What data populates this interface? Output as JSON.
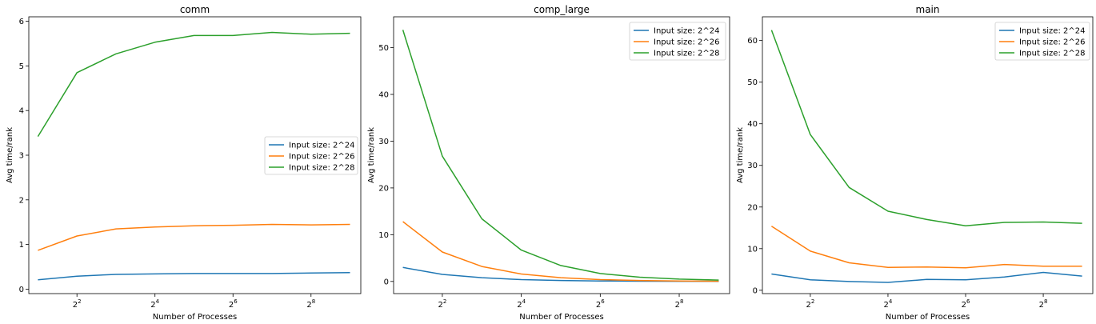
{
  "chart_data": [
    {
      "type": "line",
      "title": "comm",
      "xlabel": "Number of Processes",
      "ylabel": "Avg time/rank",
      "x": [
        2,
        4,
        8,
        16,
        32,
        64,
        128,
        256,
        512
      ],
      "x_scale": "log2",
      "xlim": [
        1.7,
        620
      ],
      "ylim": [
        -0.1,
        6.1
      ],
      "x_ticks": [
        4,
        16,
        64,
        256
      ],
      "x_tick_labels": [
        [
          "2",
          "2"
        ],
        [
          "2",
          "4"
        ],
        [
          "2",
          "6"
        ],
        [
          "2",
          "8"
        ]
      ],
      "y_ticks": [
        0,
        1,
        2,
        3,
        4,
        5,
        6
      ],
      "y_tick_labels": [
        "0",
        "1",
        "2",
        "3",
        "4",
        "5",
        "6"
      ],
      "legend_position": "center-right",
      "series": [
        {
          "name": "Input size: 2^24",
          "color": "#1f77b4",
          "values": [
            0.21,
            0.29,
            0.33,
            0.34,
            0.35,
            0.35,
            0.35,
            0.36,
            0.37
          ]
        },
        {
          "name": "Input size: 2^26",
          "color": "#ff7f0e",
          "values": [
            0.87,
            1.19,
            1.35,
            1.39,
            1.42,
            1.43,
            1.45,
            1.44,
            1.45
          ]
        },
        {
          "name": "Input size: 2^28",
          "color": "#2ca02c",
          "values": [
            3.42,
            4.85,
            5.27,
            5.53,
            5.68,
            5.68,
            5.75,
            5.71,
            5.73
          ]
        }
      ]
    },
    {
      "type": "line",
      "title": "comp_large",
      "xlabel": "Number of Processes",
      "ylabel": "Avg time/rank",
      "x": [
        2,
        4,
        8,
        16,
        32,
        64,
        128,
        256,
        512
      ],
      "x_scale": "log2",
      "xlim": [
        1.7,
        620
      ],
      "ylim": [
        -2.6,
        56.6
      ],
      "x_ticks": [
        4,
        16,
        64,
        256
      ],
      "x_tick_labels": [
        [
          "2",
          "2"
        ],
        [
          "2",
          "4"
        ],
        [
          "2",
          "6"
        ],
        [
          "2",
          "8"
        ]
      ],
      "y_ticks": [
        0,
        10,
        20,
        30,
        40,
        50
      ],
      "y_tick_labels": [
        "0",
        "10",
        "20",
        "30",
        "40",
        "50"
      ],
      "legend_position": "top-right",
      "series": [
        {
          "name": "Input size: 2^24",
          "color": "#1f77b4",
          "values": [
            3.0,
            1.5,
            0.8,
            0.4,
            0.2,
            0.1,
            0.05,
            0.03,
            0.02
          ]
        },
        {
          "name": "Input size: 2^26",
          "color": "#ff7f0e",
          "values": [
            12.8,
            6.3,
            3.2,
            1.6,
            0.8,
            0.4,
            0.2,
            0.1,
            0.05
          ]
        },
        {
          "name": "Input size: 2^28",
          "color": "#2ca02c",
          "values": [
            53.8,
            26.8,
            13.4,
            6.7,
            3.4,
            1.7,
            0.9,
            0.5,
            0.3
          ]
        }
      ]
    },
    {
      "type": "line",
      "title": "main",
      "xlabel": "Number of Processes",
      "ylabel": "Avg time/rank",
      "x": [
        2,
        4,
        8,
        16,
        32,
        64,
        128,
        256,
        512
      ],
      "x_scale": "log2",
      "xlim": [
        1.7,
        620
      ],
      "ylim": [
        -0.8,
        65.7
      ],
      "x_ticks": [
        4,
        16,
        64,
        256
      ],
      "x_tick_labels": [
        [
          "2",
          "2"
        ],
        [
          "2",
          "4"
        ],
        [
          "2",
          "6"
        ],
        [
          "2",
          "8"
        ]
      ],
      "y_ticks": [
        0,
        10,
        20,
        30,
        40,
        50,
        60
      ],
      "y_tick_labels": [
        "0",
        "10",
        "20",
        "30",
        "40",
        "50",
        "60"
      ],
      "legend_position": "top-right",
      "series": [
        {
          "name": "Input size: 2^24",
          "color": "#1f77b4",
          "values": [
            3.9,
            2.5,
            2.1,
            1.9,
            2.6,
            2.5,
            3.2,
            4.3,
            3.4
          ]
        },
        {
          "name": "Input size: 2^26",
          "color": "#ff7f0e",
          "values": [
            15.4,
            9.4,
            6.6,
            5.5,
            5.6,
            5.4,
            6.2,
            5.8,
            5.8
          ]
        },
        {
          "name": "Input size: 2^28",
          "color": "#2ca02c",
          "values": [
            62.5,
            37.4,
            24.7,
            19.0,
            17.0,
            15.5,
            16.3,
            16.4,
            16.1
          ]
        }
      ]
    }
  ]
}
